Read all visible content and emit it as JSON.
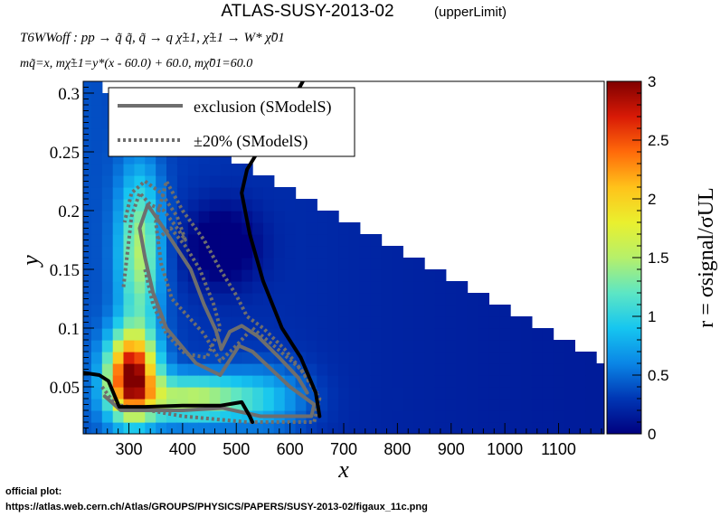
{
  "header": {
    "title": "ATLAS-SUSY-2013-02",
    "title_note": "(upperLimit)",
    "process_line": "T6WWoff : pp → q̃ q̃, q̃ → q χ̃±1, χ̃±1 → W* χ̃01",
    "mass_line": "mq̃=x, mχ̃±1=y*(x - 60.0) + 60.0, mχ̃01=60.0"
  },
  "footer": {
    "label": "official plot:",
    "url": "https://atlas.web.cern.ch/Atlas/GROUPS/PHYSICS/PAPERS/SUSY-2013-02/figaux_11c.png"
  },
  "chart_data": {
    "type": "heatmap",
    "xlabel": "x",
    "ylabel": "y",
    "zlabel": "r = σsignal/σUL",
    "xlim": [
      215,
      1185
    ],
    "ylim": [
      0.01,
      0.31
    ],
    "zlim": [
      0,
      3
    ],
    "x_ticks": [
      300,
      400,
      500,
      600,
      700,
      800,
      900,
      1000,
      1100
    ],
    "y_ticks": [
      0.05,
      0.1,
      0.15,
      0.2,
      0.25,
      0.3
    ],
    "z_ticks": [
      0,
      0.5,
      1,
      1.5,
      2,
      2.5,
      3
    ],
    "legend": {
      "placement": "top-left",
      "entries": [
        {
          "label": "exclusion (SModelS)",
          "style": "solid",
          "color": "#6e6e6e"
        },
        {
          "label": "±20% (SModelS)",
          "style": "dotted",
          "color": "#6e6e6e"
        }
      ]
    },
    "colors": {
      "exclusion_smodels": "#6e6e6e",
      "official_exclusion": "#000000",
      "palette": [
        "#00007f",
        "#0036b4",
        "#0a86e6",
        "#16c6f0",
        "#5de6c4",
        "#b6f06a",
        "#eaf02e",
        "#ffc21a",
        "#ff6a0a",
        "#d81a06",
        "#800000"
      ]
    },
    "series": [
      {
        "name": "exclusion (SModelS)",
        "points": [
          [
            255,
            0.042
          ],
          [
            285,
            0.03
          ],
          [
            400,
            0.03
          ],
          [
            475,
            0.032
          ],
          [
            545,
            0.025
          ],
          [
            640,
            0.025
          ],
          [
            645,
            0.035
          ],
          [
            600,
            0.05
          ],
          [
            530,
            0.08
          ],
          [
            505,
            0.085
          ],
          [
            470,
            0.06
          ],
          [
            425,
            0.07
          ],
          [
            370,
            0.1
          ],
          [
            345,
            0.13
          ],
          [
            330,
            0.16
          ],
          [
            320,
            0.185
          ],
          [
            335,
            0.205
          ],
          [
            375,
            0.178
          ],
          [
            415,
            0.15
          ],
          [
            440,
            0.12
          ],
          [
            462,
            0.098
          ],
          [
            472,
            0.082
          ],
          [
            488,
            0.097
          ],
          [
            510,
            0.102
          ],
          [
            540,
            0.093
          ],
          [
            580,
            0.075
          ],
          [
            615,
            0.058
          ],
          [
            632,
            0.045
          ]
        ]
      },
      {
        "name": "±20% (SModelS)",
        "points": [
          [
            250,
            0.05
          ],
          [
            275,
            0.035
          ],
          [
            400,
            0.025
          ],
          [
            520,
            0.02
          ],
          [
            645,
            0.02
          ],
          [
            655,
            0.04
          ],
          [
            620,
            0.065
          ],
          [
            570,
            0.085
          ],
          [
            530,
            0.1
          ],
          [
            500,
            0.085
          ],
          [
            470,
            0.072
          ],
          [
            440,
            0.095
          ],
          [
            410,
            0.11
          ],
          [
            380,
            0.125
          ],
          [
            360,
            0.155
          ],
          [
            350,
            0.19
          ],
          [
            370,
            0.225
          ],
          [
            400,
            0.2
          ],
          [
            440,
            0.175
          ],
          [
            470,
            0.15
          ],
          [
            500,
            0.128
          ],
          [
            520,
            0.11
          ],
          [
            550,
            0.1
          ],
          [
            590,
            0.082
          ],
          [
            625,
            0.062
          ],
          [
            650,
            0.045
          ]
        ]
      },
      {
        "name": "±20% (SModelS)",
        "points": [
          [
            330,
            0.15
          ],
          [
            345,
            0.12
          ],
          [
            370,
            0.095
          ],
          [
            405,
            0.078
          ],
          [
            445,
            0.075
          ],
          [
            470,
            0.1
          ],
          [
            458,
            0.12
          ],
          [
            432,
            0.15
          ],
          [
            405,
            0.17
          ],
          [
            378,
            0.185
          ],
          [
            350,
            0.175
          ]
        ]
      },
      {
        "name": "±20% (SModelS)",
        "points": [
          [
            290,
            0.135
          ],
          [
            295,
            0.155
          ],
          [
            300,
            0.175
          ],
          [
            305,
            0.195
          ],
          [
            320,
            0.215
          ],
          [
            340,
            0.205
          ],
          [
            365,
            0.2
          ],
          [
            390,
            0.185
          ],
          [
            405,
            0.175
          ],
          [
            390,
            0.195
          ],
          [
            360,
            0.215
          ],
          [
            330,
            0.225
          ],
          [
            305,
            0.215
          ],
          [
            292,
            0.19
          ]
        ]
      },
      {
        "name": "official exclusion",
        "points": [
          [
            215,
            0.062
          ],
          [
            245,
            0.06
          ],
          [
            262,
            0.055
          ],
          [
            282,
            0.033
          ],
          [
            330,
            0.033
          ],
          [
            400,
            0.034
          ],
          [
            470,
            0.034
          ],
          [
            510,
            0.037
          ],
          [
            525,
            0.025
          ],
          [
            530,
            0.02
          ]
        ]
      },
      {
        "name": "official exclusion",
        "points": [
          [
            655,
            0.025
          ],
          [
            648,
            0.045
          ],
          [
            620,
            0.075
          ],
          [
            585,
            0.1
          ],
          [
            550,
            0.14
          ],
          [
            525,
            0.18
          ],
          [
            510,
            0.215
          ],
          [
            520,
            0.235
          ],
          [
            540,
            0.25
          ],
          [
            570,
            0.27
          ],
          [
            600,
            0.29
          ],
          [
            630,
            0.315
          ]
        ]
      }
    ]
  }
}
